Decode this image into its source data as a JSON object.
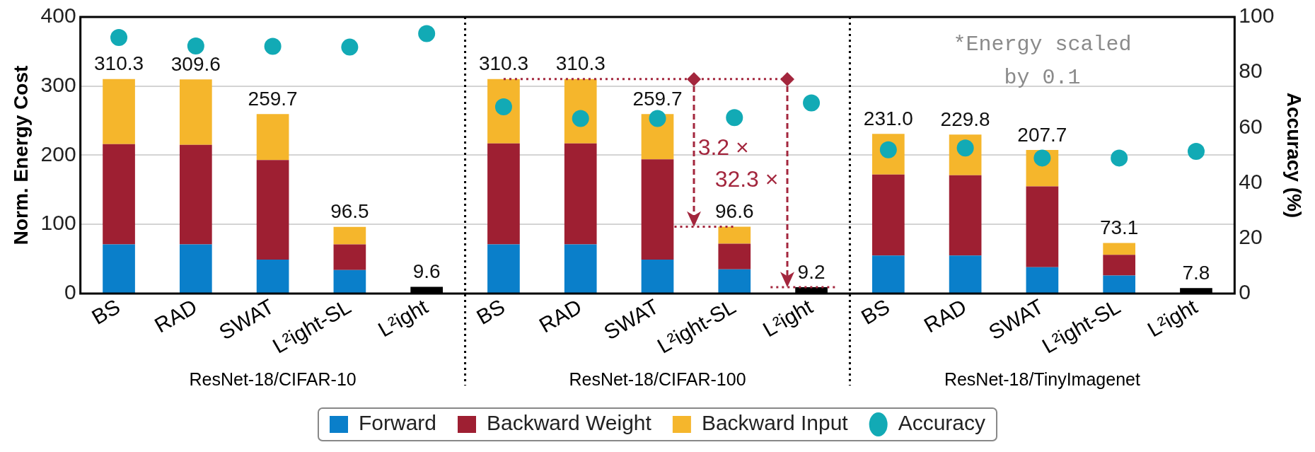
{
  "chart_data": {
    "type": "bar",
    "stacked": true,
    "categories": [
      "BS",
      "RAD",
      "SWAT",
      "L²ight-SL",
      "L²ight",
      "BS",
      "RAD",
      "SWAT",
      "L²ight-SL",
      "L²ight",
      "BS",
      "RAD",
      "SWAT",
      "L²ight-SL",
      "L²ight"
    ],
    "series": [
      {
        "name": "Forward",
        "color": "#0a7fca",
        "values": [
          71,
          71,
          49,
          34,
          null,
          71,
          71,
          49,
          35,
          null,
          55,
          55,
          38,
          26,
          null
        ]
      },
      {
        "name": "Backward Weight",
        "color": "#9e1f32",
        "values": [
          145,
          144,
          144,
          37,
          null,
          146,
          146,
          145,
          37,
          null,
          117,
          116,
          117,
          30,
          null
        ]
      },
      {
        "name": "Backward Input",
        "color": "#f5b62c",
        "values": [
          94.3,
          94.6,
          66.7,
          25.5,
          null,
          93.3,
          93.3,
          65.7,
          24.6,
          null,
          59,
          58.8,
          52.7,
          17.1,
          null
        ]
      },
      {
        "color": "#000000",
        "values": [
          null,
          null,
          null,
          null,
          9.6,
          null,
          null,
          null,
          null,
          9.2,
          null,
          null,
          null,
          null,
          7.8
        ]
      },
      {
        "name": "Accuracy",
        "type": "scatter",
        "axis": "y2",
        "color": "#12aab5",
        "values": [
          92.6,
          89.5,
          89.4,
          89.1,
          94,
          67.5,
          63.3,
          63.3,
          63.6,
          68.9,
          52,
          52.6,
          49,
          49,
          51.4
        ]
      }
    ],
    "totals": [
      "310.3",
      "309.6",
      "259.7",
      "96.5",
      "9.6",
      "310.3",
      "310.3",
      "259.7",
      "96.6",
      "9.2",
      "231.0",
      "229.8",
      "207.7",
      "73.1",
      "7.8"
    ],
    "ylabel": "Norm. Energy Cost",
    "y2label": "Accuracy (%)",
    "ylim": [
      0,
      400
    ],
    "yticks": [
      0,
      100,
      200,
      300,
      400
    ],
    "y2lim": [
      0,
      100
    ],
    "y2ticks": [
      0,
      20,
      40,
      60,
      80,
      100
    ],
    "grid": "y",
    "legend": "bottom",
    "marker": "circle",
    "annotations": [
      "ResNet-18/CIFAR-10",
      "ResNet-18/CIFAR-100",
      "ResNet-18/TinyImagenet",
      "*Energy scaled by 0.1",
      "3.2 ×",
      "32.3 ×"
    ]
  }
}
